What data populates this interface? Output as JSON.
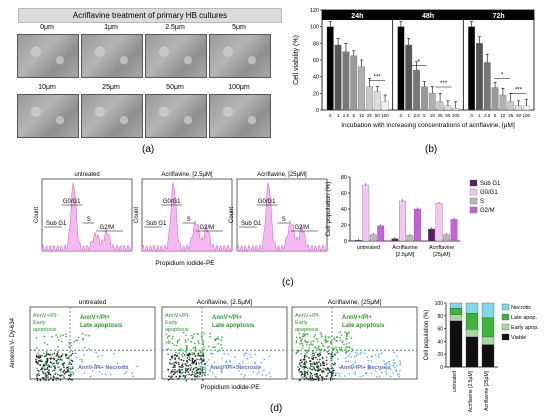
{
  "panel_a": {
    "title": "Acriflavine treatment of primary HB cultures",
    "labels": [
      "0μm",
      "1μm",
      "2.5μm",
      "5μm",
      "10μm",
      "25μm",
      "50μm",
      "100μm"
    ],
    "caption": "(a)"
  },
  "panel_b": {
    "caption": "(b)",
    "time_labels": [
      "24h",
      "48h",
      "72h"
    ],
    "ylabel": "Cell viability (%)",
    "xlabel": "Incubation with increasing concentrations of acriflavine, [μM]",
    "x_ticks": [
      "0",
      "1",
      "2.5",
      "5",
      "10",
      "25",
      "50",
      "100"
    ],
    "y_ticks": [
      "0",
      "20",
      "40",
      "60",
      "80",
      "100",
      "120"
    ],
    "signif": [
      "***",
      "*",
      "***",
      "*",
      "***"
    ]
  },
  "panel_c": {
    "caption": "(c)",
    "histograms": [
      {
        "title": "untreated"
      },
      {
        "title": "Acriflavine, [2.5μM]"
      },
      {
        "title": "Acriflavine, [25μM]"
      }
    ],
    "hist_labels": {
      "g0g1": "G0/G1",
      "subg1": "Sub G1",
      "s": "S",
      "g2m": "G2/M",
      "ylabel": "Count",
      "xlabel": "Propidium iodide-PE"
    },
    "ylabel": "Cell population (%)",
    "y_ticks": [
      "0",
      "20",
      "40",
      "60",
      "80"
    ],
    "groups": [
      "untreated",
      "Acriflavine [2.5μM]",
      "Acriflavine [25μM]"
    ],
    "group_line1": [
      "untreated",
      "Acriflavine",
      "Acriflavine"
    ],
    "group_line2": [
      "",
      "[2.5μM]",
      "[25μM]"
    ],
    "legend": [
      "Sub G1",
      "G0/G1",
      "S",
      "G2/M"
    ]
  },
  "panel_d": {
    "caption": "(d)",
    "plots": [
      {
        "title": "untreated"
      },
      {
        "title": "Acriflavine, [2.5μM]"
      },
      {
        "title": "Acriflavine, [25μM]"
      }
    ],
    "quad_labels": {
      "early": "AnnV+/PI-\nEarly\napoptosis",
      "late": "AnnV+/PI+\nLate apoptosis",
      "necrosis": "AnnV-/PI+ Necrosis"
    },
    "ylabel": "Annexin V- Dy-634",
    "xlabel": "Propidium iodide-PE",
    "bar_ylabel": "Cell population (%)",
    "bar_y_ticks": [
      "0",
      "20",
      "40",
      "60",
      "80",
      "100"
    ],
    "bar_groups": [
      "untreated",
      "Acriflavine [2.5μM]",
      "Acriflavine [25μM]"
    ],
    "legend": [
      "Necrotic",
      "Late apop.",
      "Early apop.",
      "Viable"
    ]
  },
  "chart_data": [
    {
      "type": "bar",
      "ylabel": "Cell viability (%)",
      "xlabel": "Incubation with increasing concentrations of acriflavine, [μM]",
      "categories": [
        "0",
        "1",
        "2.5",
        "5",
        "10",
        "25",
        "50",
        "100"
      ],
      "ylim": [
        0,
        120
      ],
      "series": [
        {
          "name": "24h",
          "values": [
            100,
            78,
            70,
            65,
            52,
            28,
            22,
            10
          ]
        },
        {
          "name": "48h",
          "values": [
            100,
            78,
            48,
            28,
            20,
            10,
            5,
            2
          ]
        },
        {
          "name": "72h",
          "values": [
            100,
            80,
            57,
            27,
            18,
            10,
            5,
            5
          ]
        }
      ],
      "colors": [
        "#000000",
        "#555555",
        "#777777",
        "#999999",
        "#b0b0b0",
        "#c8c8c8",
        "#dcdcdc",
        "#f0f0f0"
      ]
    },
    {
      "type": "bar",
      "ylabel": "Cell population (%)",
      "categories": [
        "untreated",
        "Acriflavine [2.5μM]",
        "Acriflavine [25μM]"
      ],
      "ylim": [
        0,
        80
      ],
      "series": [
        {
          "name": "Sub G1",
          "values": [
            1,
            3,
            15
          ]
        },
        {
          "name": "G0/G1",
          "values": [
            70,
            50,
            47
          ]
        },
        {
          "name": "S",
          "values": [
            8,
            7,
            8
          ]
        },
        {
          "name": "G2/M",
          "values": [
            19,
            40,
            27
          ]
        }
      ],
      "colors": [
        "#5b1a6b",
        "#f4c6f0",
        "#b8b8b8",
        "#c85fe0"
      ]
    },
    {
      "type": "bar",
      "ylabel": "Cell population (%)",
      "categories": [
        "untreated",
        "Acriflavine [2.5μM]",
        "Acriflavine [25μM]"
      ],
      "ylim": [
        0,
        100
      ],
      "stacked": true,
      "series": [
        {
          "name": "Viable",
          "values": [
            72,
            47,
            35
          ]
        },
        {
          "name": "Early apop.",
          "values": [
            10,
            12,
            12
          ]
        },
        {
          "name": "Late apop.",
          "values": [
            10,
            25,
            30
          ]
        },
        {
          "name": "Necrotic",
          "values": [
            8,
            16,
            23
          ]
        }
      ],
      "colors": [
        "#111111",
        "#a8d8a0",
        "#3cb43c",
        "#7dd8e8"
      ]
    }
  ]
}
